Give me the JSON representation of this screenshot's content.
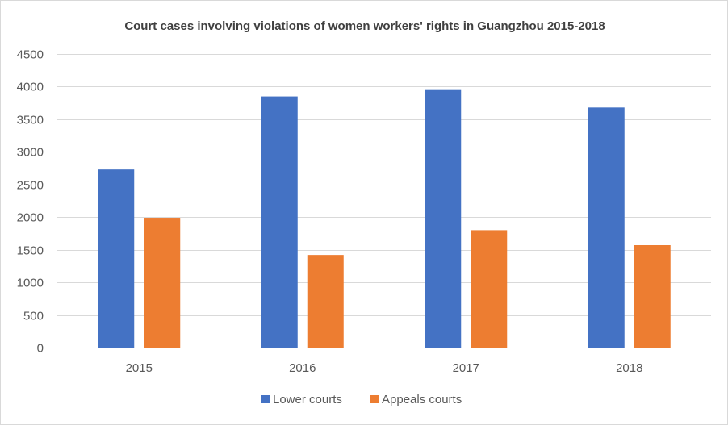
{
  "chart_data": {
    "type": "bar",
    "title": "Court cases involving violations of women workers' rights in Guangzhou 2015-2018",
    "xlabel": "",
    "ylabel": "",
    "categories": [
      "2015",
      "2016",
      "2017",
      "2018"
    ],
    "series": [
      {
        "name": "Lower courts",
        "color": "#4472c4",
        "values": [
          2730,
          3850,
          3960,
          3680
        ]
      },
      {
        "name": "Appeals courts",
        "color": "#ed7d31",
        "values": [
          1990,
          1420,
          1800,
          1570
        ]
      }
    ],
    "ylim": [
      0,
      4500
    ],
    "yticks": [
      "0",
      "500",
      "1000",
      "1500",
      "2000",
      "2500",
      "3000",
      "3500",
      "4000",
      "4500"
    ],
    "grid": true,
    "legend": "bottom"
  }
}
